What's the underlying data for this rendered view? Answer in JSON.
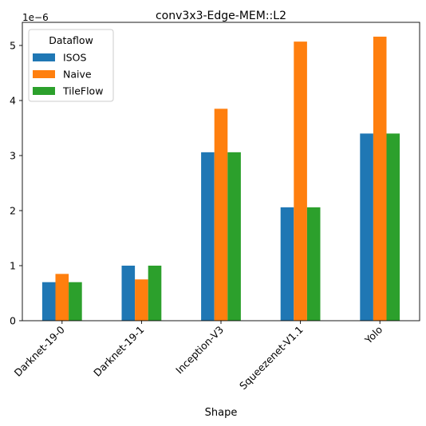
{
  "chart_data": {
    "type": "bar",
    "title": "conv3x3-Edge-MEM::L2",
    "xlabel": "Shape",
    "ylabel": "",
    "y_scale_label": "1e−6",
    "categories": [
      "Darknet-19-0",
      "Darknet-19-1",
      "Inception-V3",
      "Squeezenet-V1.1",
      "Yolo"
    ],
    "series": [
      {
        "name": "ISOS",
        "color": "#1f77b4",
        "values": [
          0.7,
          1.0,
          3.06,
          2.06,
          3.4
        ]
      },
      {
        "name": "Naive",
        "color": "#ff7f0e",
        "values": [
          0.85,
          0.75,
          3.85,
          5.07,
          5.16
        ]
      },
      {
        "name": "TileFlow",
        "color": "#2ca02c",
        "values": [
          0.7,
          1.0,
          3.06,
          2.06,
          3.4
        ]
      }
    ],
    "ylim": [
      0,
      5.42
    ],
    "yticks": [
      0,
      1,
      2,
      3,
      4,
      5
    ],
    "legend": {
      "title": "Dataflow",
      "placement": "top-left"
    },
    "grid": false
  }
}
